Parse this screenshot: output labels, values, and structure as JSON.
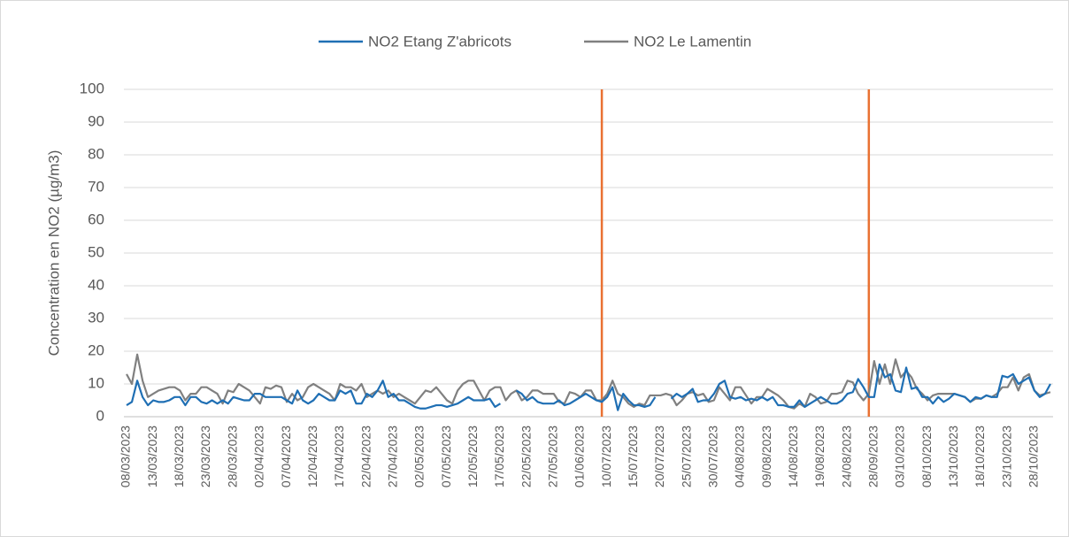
{
  "chart_data": {
    "type": "line",
    "y_label": "Concentration en NO2 (µg/m3)",
    "categories": [
      "08/03/2023",
      null,
      null,
      null,
      null,
      "13/03/2023",
      null,
      null,
      null,
      null,
      "18/03/2023",
      null,
      null,
      null,
      null,
      "23/03/2023",
      null,
      null,
      null,
      null,
      "28/03/2023",
      null,
      null,
      null,
      null,
      "02/04/2023",
      null,
      null,
      null,
      null,
      "07/04/2023",
      null,
      null,
      null,
      null,
      "12/04/2023",
      null,
      null,
      null,
      null,
      "17/04/2023",
      null,
      null,
      null,
      null,
      "22/04/2023",
      null,
      null,
      null,
      null,
      "27/04/2023",
      null,
      null,
      null,
      null,
      "02/05/2023",
      null,
      null,
      null,
      null,
      "07/05/2023",
      null,
      null,
      null,
      null,
      "12/05/2023",
      null,
      null,
      null,
      null,
      "17/05/2023",
      null,
      null,
      null,
      null,
      "22/05/2023",
      null,
      null,
      null,
      null,
      "27/05/2023",
      null,
      null,
      null,
      null,
      "01/06/2023",
      null,
      null,
      null,
      null,
      "10/07/2023",
      null,
      null,
      null,
      null,
      "15/07/2023",
      null,
      null,
      null,
      null,
      "20/07/2023",
      null,
      null,
      null,
      null,
      "25/07/2023",
      null,
      null,
      null,
      null,
      "30/07/2023",
      null,
      null,
      null,
      null,
      "04/08/2023",
      null,
      null,
      null,
      null,
      "09/08/2023",
      null,
      null,
      null,
      null,
      "14/08/2023",
      null,
      null,
      null,
      null,
      "19/08/2023",
      null,
      null,
      null,
      null,
      "24/08/2023",
      null,
      null,
      null,
      null,
      "28/09/2023",
      null,
      null,
      null,
      null,
      "03/10/2023",
      null,
      null,
      null,
      null,
      "08/10/2023",
      null,
      null,
      null,
      null,
      "13/10/2023",
      null,
      null,
      null,
      null,
      "18/10/2023",
      null,
      null,
      null,
      null,
      "23/10/2023",
      null,
      null,
      null,
      null,
      "28/10/2023",
      null,
      null,
      null
    ],
    "series": [
      {
        "name": "NO2 Etang Z'abricots",
        "color": "#1f6fb4",
        "values": [
          3.5,
          4.5,
          11,
          6,
          3.5,
          5,
          4.5,
          4.5,
          5,
          6,
          6,
          3.5,
          6,
          6,
          4.5,
          4,
          5,
          4,
          5,
          4,
          6,
          5.5,
          5,
          5,
          7,
          7,
          6,
          6,
          6,
          6,
          5,
          4,
          8,
          5,
          4,
          5,
          7,
          6,
          5,
          5,
          8,
          7,
          8,
          4,
          4,
          7,
          6,
          8,
          11,
          6,
          7,
          5,
          5,
          4,
          3,
          2.5,
          2.5,
          3,
          3.5,
          3.5,
          3,
          3.5,
          4,
          5,
          6,
          5,
          5,
          5,
          5.5,
          3,
          4,
          null,
          null,
          8,
          7,
          5,
          6,
          4.5,
          4,
          4,
          4,
          5,
          3.5,
          4,
          5,
          6,
          7,
          6,
          5,
          4.5,
          6,
          9,
          2,
          7,
          5,
          3.5,
          3.5,
          3,
          3.5,
          6,
          null,
          null,
          5.5,
          7,
          6,
          7,
          8.5,
          4.5,
          5,
          5,
          7,
          10,
          11,
          6,
          5.5,
          6,
          5,
          5.5,
          5,
          6,
          5,
          6,
          3.5,
          3.5,
          3,
          3,
          5,
          3,
          4,
          5,
          6,
          5,
          4,
          4,
          5,
          7,
          7.5,
          11.5,
          9,
          6,
          6,
          16,
          12,
          13,
          8,
          7.5,
          15,
          8.5,
          9,
          6,
          6,
          4,
          6,
          4.5,
          5.5,
          7,
          6.5,
          6,
          4.5,
          6,
          5.5,
          6.5,
          6,
          6,
          12.5,
          12,
          13,
          10,
          11,
          12,
          8,
          6,
          7,
          10
        ]
      },
      {
        "name": "NO2 Le Lamentin",
        "color": "#808080",
        "values": [
          13,
          10,
          19,
          11,
          6,
          7,
          8,
          8.5,
          9,
          9,
          8,
          5,
          7,
          7,
          9,
          9,
          8,
          7,
          4,
          8,
          7.5,
          10,
          9,
          8,
          6,
          4,
          9,
          8.5,
          9.5,
          9,
          4.5,
          7,
          5,
          6,
          9,
          10,
          9,
          8,
          7,
          5,
          10,
          9,
          9,
          8,
          10,
          6,
          7,
          8,
          7,
          8,
          6,
          7,
          6,
          5,
          4,
          6,
          8,
          7.5,
          9,
          7,
          5,
          4,
          8,
          10,
          11,
          11,
          8,
          5,
          8,
          9,
          9,
          5,
          7,
          8,
          5,
          6,
          8,
          8,
          7,
          7,
          7,
          4.5,
          4,
          7.5,
          7,
          6,
          8,
          8,
          5,
          5,
          7,
          11,
          7,
          6,
          4,
          3,
          4,
          3.5,
          6.5,
          6.5,
          6.5,
          7,
          6.5,
          3.5,
          5,
          7,
          7.5,
          6.5,
          7,
          4.5,
          5,
          9,
          7,
          5,
          9,
          9,
          6.5,
          4,
          6,
          6,
          8.5,
          7.5,
          6.5,
          5,
          3,
          2.5,
          4,
          3,
          7,
          6,
          4,
          4.5,
          7,
          7,
          7.5,
          11,
          10.5,
          7,
          5,
          7,
          17,
          10,
          16,
          10,
          17.5,
          12,
          14,
          12,
          8.5,
          7,
          5,
          6.5,
          7,
          7,
          7,
          7,
          6.5,
          6,
          4.5,
          5.5,
          5.5,
          6.5,
          6,
          7,
          9,
          9,
          12,
          8,
          12,
          13,
          8,
          6.5,
          7,
          7.5
        ]
      }
    ],
    "vlines": {
      "positions": [
        89.5,
        139.5
      ],
      "color": "#e97132"
    },
    "ylim": [
      0,
      100
    ],
    "yticks": [
      0,
      10,
      20,
      30,
      40,
      50,
      60,
      70,
      80,
      90,
      100
    ],
    "grid": true,
    "legend": "top"
  }
}
